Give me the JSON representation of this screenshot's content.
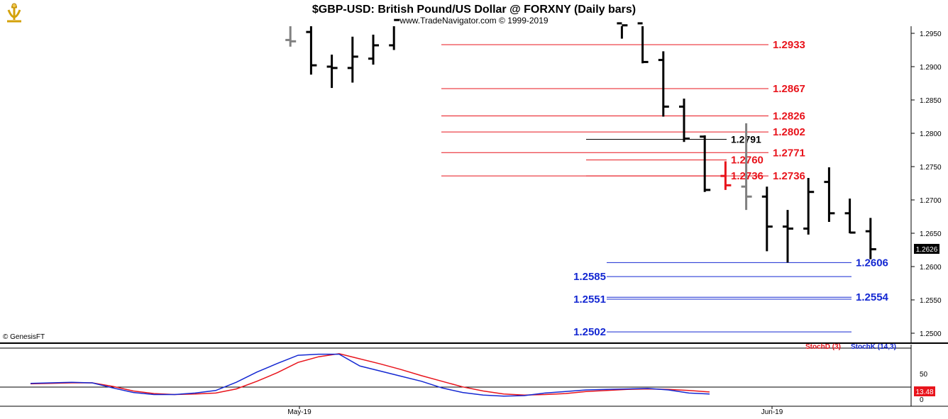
{
  "header": {
    "title": "$GBP-USD:  British Pound/US Dollar @ FORXNY  (Daily bars)",
    "subtitle": "www.TradeNavigator.com © 1999-2019",
    "copyright": "© GenesisFT"
  },
  "chart_data": {
    "type": "bar",
    "title": "$GBP-USD:  British Pound/US Dollar @ FORXNY  (Daily bars)",
    "price_axis": {
      "ticks": [
        "1.2950",
        "1.2900",
        "1.2850",
        "1.2800",
        "1.2750",
        "1.2700",
        "1.2650",
        "1.2600",
        "1.2550",
        "1.2500"
      ],
      "ylim": [
        1.247,
        1.297
      ],
      "last_price": "1.2626"
    },
    "x_labels": [
      {
        "label": "May-19",
        "bar": 12
      },
      {
        "label": "Jun-19",
        "bar": 39
      }
    ],
    "bars": [
      {
        "i": 6,
        "o": 1.294,
        "h": 1.2975,
        "l": 1.293,
        "c": 1.2938,
        "color": "gray"
      },
      {
        "i": 7,
        "o": 1.2952,
        "h": 1.2975,
        "l": 1.2888,
        "c": 1.2902
      },
      {
        "i": 8,
        "o": 1.29,
        "h": 1.2918,
        "l": 1.2868,
        "c": 1.2898
      },
      {
        "i": 9,
        "o": 1.2898,
        "h": 1.2945,
        "l": 1.2876,
        "c": 1.2915
      },
      {
        "i": 10,
        "o": 1.2912,
        "h": 1.2948,
        "l": 1.2903,
        "c": 1.2932
      },
      {
        "i": 11,
        "o": 1.2932,
        "h": 1.2975,
        "l": 1.2925,
        "c": 1.297
      },
      {
        "i": 22,
        "o": 1.2965,
        "h": 1.2975,
        "l": 1.2942,
        "c": 1.2962
      },
      {
        "i": 23,
        "o": 1.2965,
        "h": 1.297,
        "l": 1.2905,
        "c": 1.2907
      },
      {
        "i": 24,
        "o": 1.291,
        "h": 1.2923,
        "l": 1.2825,
        "c": 1.284
      },
      {
        "i": 25,
        "o": 1.284,
        "h": 1.2852,
        "l": 1.2787,
        "c": 1.2792
      },
      {
        "i": 26,
        "o": 1.2795,
        "h": 1.2797,
        "l": 1.2712,
        "c": 1.2715
      },
      {
        "i": 27,
        "o": 1.2736,
        "h": 1.2758,
        "l": 1.2715,
        "c": 1.2722,
        "color": "red"
      },
      {
        "i": 28,
        "o": 1.272,
        "h": 1.2815,
        "l": 1.2685,
        "c": 1.2705,
        "color": "gray"
      },
      {
        "i": 29,
        "o": 1.2705,
        "h": 1.272,
        "l": 1.2623,
        "c": 1.266
      },
      {
        "i": 30,
        "o": 1.266,
        "h": 1.2685,
        "l": 1.2606,
        "c": 1.2657
      },
      {
        "i": 31,
        "o": 1.2657,
        "h": 1.2733,
        "l": 1.2648,
        "c": 1.2712
      },
      {
        "i": 32,
        "o": 1.2727,
        "h": 1.2749,
        "l": 1.2667,
        "c": 1.268
      },
      {
        "i": 33,
        "o": 1.268,
        "h": 1.2702,
        "l": 1.265,
        "c": 1.2651
      },
      {
        "i": 34,
        "o": 1.2653,
        "h": 1.2673,
        "l": 1.2611,
        "c": 1.2626
      }
    ],
    "levels": [
      {
        "value": 1.2933,
        "label": "1.2933",
        "color": "red",
        "x1": 622,
        "x2": 1083,
        "label_x": 1089,
        "anchor": "start"
      },
      {
        "value": 1.2867,
        "label": "1.2867",
        "color": "red",
        "x1": 622,
        "x2": 1083,
        "label_x": 1089,
        "anchor": "start"
      },
      {
        "value": 1.2826,
        "label": "1.2826",
        "color": "red",
        "x1": 622,
        "x2": 1083,
        "label_x": 1089,
        "anchor": "start"
      },
      {
        "value": 1.2802,
        "label": "1.2802",
        "color": "red",
        "x1": 622,
        "x2": 1083,
        "label_x": 1089,
        "anchor": "start"
      },
      {
        "value": 1.2771,
        "label": "1.2771",
        "color": "red",
        "x1": 622,
        "x2": 1083,
        "label_x": 1089,
        "anchor": "start"
      },
      {
        "value": 1.2736,
        "label": "1.2736",
        "color": "red",
        "x1": 622,
        "x2": 1083,
        "label_x": 1089,
        "anchor": "start"
      },
      {
        "value": 1.2791,
        "label": "1.2791",
        "color": "black",
        "x1": 826,
        "x2": 1024,
        "label_x": 1030,
        "anchor": "start"
      },
      {
        "value": 1.276,
        "label": "1.2760",
        "color": "red",
        "x1": 826,
        "x2": 1024,
        "label_x": 1030,
        "anchor": "start"
      },
      {
        "value": 1.2736,
        "label": "1.2736",
        "color": "red",
        "x1": 826,
        "x2": 1024,
        "label_x": 1030,
        "anchor": "start"
      },
      {
        "value": 1.2606,
        "label": "1.2606",
        "color": "blue",
        "x1": 855,
        "x2": 1200,
        "label_x": 1206,
        "anchor": "start"
      },
      {
        "value": 1.2585,
        "label": "1.2585",
        "color": "blue",
        "x1": 855,
        "x2": 1200,
        "label_x": 854,
        "anchor": "end"
      },
      {
        "value": 1.2554,
        "label": "1.2554",
        "color": "blue",
        "x1": 855,
        "x2": 1200,
        "label_x": 1206,
        "anchor": "start"
      },
      {
        "value": 1.2551,
        "label": "1.2551",
        "color": "blue",
        "x1": 855,
        "x2": 1200,
        "label_x": 854,
        "anchor": "end"
      },
      {
        "value": 1.2502,
        "label": "1.2502",
        "color": "blue",
        "x1": 855,
        "x2": 1200,
        "label_x": 854,
        "anchor": "end"
      }
    ],
    "stochastic": {
      "legend_d": "StochD (3)",
      "legend_k": "StochK (14,3)",
      "ylim": [
        0,
        100
      ],
      "ticks": [
        "50",
        "0"
      ],
      "last_value": "13.48",
      "x": [
        1,
        2,
        3,
        4,
        5,
        6,
        7,
        8,
        9,
        10,
        11,
        12,
        13,
        14,
        15,
        16,
        17,
        18,
        19,
        20,
        21,
        22,
        23,
        24,
        25,
        26,
        27,
        28,
        29,
        30,
        31,
        32,
        33,
        34
      ],
      "k": [
        31,
        32,
        33,
        32,
        22,
        13,
        9,
        9,
        12,
        17,
        33,
        53,
        70,
        86,
        88,
        88,
        65,
        55,
        45,
        35,
        22,
        13,
        8,
        6,
        7,
        12,
        15,
        18,
        19,
        20,
        21,
        18,
        12,
        10
      ],
      "d": [
        30,
        31,
        32,
        32,
        25,
        16,
        11,
        9,
        10,
        12,
        20,
        35,
        52,
        72,
        83,
        89,
        79,
        69,
        58,
        46,
        35,
        24,
        16,
        10,
        8,
        9,
        11,
        15,
        17,
        19,
        20,
        19,
        17,
        14
      ]
    }
  },
  "colors": {
    "red": "#e8141c",
    "blue": "#1428d2",
    "black": "#000000",
    "gray": "#808080"
  }
}
